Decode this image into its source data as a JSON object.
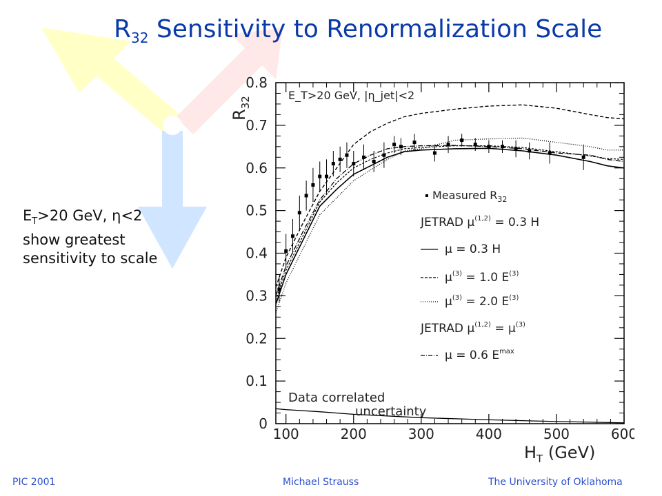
{
  "slide": {
    "title_main": "R",
    "title_sub": "32",
    "title_rest": " Sensitivity to Renormalization Scale",
    "side_text": {
      "line1_pre": "E",
      "line1_sub": "T",
      "line1_post": ">20 GeV, η<2",
      "line2": "show greatest",
      "line3": "sensitivity to scale"
    },
    "footer": {
      "left": "PIC 2001",
      "center": "Michael Strauss",
      "right": "The University of Oklahoma"
    }
  },
  "chart_data": {
    "type": "line",
    "xlabel": "H",
    "xlabel_sub": "T",
    "xlabel_unit": " (GeV)",
    "ylabel": "R",
    "ylabel_sub": "32",
    "xlim": [
      85,
      600
    ],
    "ylim": [
      0,
      0.8
    ],
    "xticks": [
      100,
      200,
      300,
      400,
      500,
      "600"
    ],
    "yticks": [
      "0",
      "0.1",
      "0.2",
      "0.3",
      "0.4",
      "0.5",
      "0.6",
      "0.7",
      "0.8"
    ],
    "cut_label": "E_T>20 GeV, |η_jet|<2",
    "annotation": {
      "line1": "Data correlated",
      "line2": "uncertainty"
    },
    "legend": {
      "measured": "Measured R",
      "measured_sub": "32",
      "jetrad1": "JETRAD μ",
      "jetrad1_sup": "(1,2)",
      "jetrad1_post": " = 0.3 H",
      "s1": "μ",
      "s1_post": " = 0.3 H",
      "s2": "μ",
      "s2_sup": "(3)",
      "s2_post": " = 1.0 E",
      "s2_post_sup": "(3)",
      "s3": "μ",
      "s3_sup": "(3)",
      "s3_post": " = 2.0 E",
      "s3_post_sup": "(3)",
      "jetrad2": "JETRAD μ",
      "jetrad2_sup": "(1,2)",
      "jetrad2_mid": " = μ",
      "jetrad2_sup2": "(3)",
      "s4": "μ",
      "s4_post": " = 0.6 E",
      "s4_post_sup": "max"
    },
    "series": [
      {
        "style": "solid",
        "x": [
          85,
          100,
          125,
          150,
          175,
          200,
          225,
          250,
          275,
          300,
          350,
          400,
          450,
          500,
          550,
          575,
          600
        ],
        "y": [
          0.28,
          0.35,
          0.43,
          0.51,
          0.55,
          0.585,
          0.605,
          0.625,
          0.638,
          0.642,
          0.645,
          0.646,
          0.64,
          0.63,
          0.615,
          0.605,
          0.6
        ]
      },
      {
        "style": "dashed",
        "x": [
          85,
          100,
          125,
          150,
          175,
          200,
          225,
          250,
          275,
          300,
          350,
          400,
          450,
          500,
          550,
          575,
          600
        ],
        "y": [
          0.32,
          0.39,
          0.47,
          0.545,
          0.6,
          0.655,
          0.685,
          0.705,
          0.72,
          0.728,
          0.738,
          0.745,
          0.748,
          0.74,
          0.725,
          0.718,
          0.715
        ]
      },
      {
        "style": "dotted",
        "x": [
          85,
          100,
          125,
          150,
          175,
          200,
          225,
          250,
          275,
          300,
          350,
          400,
          450,
          500,
          550,
          575,
          600
        ],
        "y": [
          0.26,
          0.33,
          0.41,
          0.49,
          0.53,
          0.57,
          0.595,
          0.62,
          0.64,
          0.645,
          0.665,
          0.668,
          0.67,
          0.66,
          0.65,
          0.642,
          0.642
        ]
      },
      {
        "style": "dashdot",
        "x": [
          85,
          100,
          125,
          150,
          175,
          200,
          225,
          250,
          275,
          300,
          350,
          400,
          450,
          500,
          550,
          575,
          600
        ],
        "y": [
          0.3,
          0.37,
          0.45,
          0.525,
          0.575,
          0.61,
          0.63,
          0.645,
          0.65,
          0.652,
          0.653,
          0.65,
          0.645,
          0.635,
          0.63,
          0.62,
          0.615
        ]
      },
      {
        "style": "dash2",
        "x": [
          85,
          100,
          125,
          150,
          175,
          200,
          225,
          250,
          275,
          300,
          350,
          400,
          450,
          500,
          550,
          575,
          600
        ],
        "y": [
          0.29,
          0.36,
          0.44,
          0.52,
          0.565,
          0.6,
          0.62,
          0.635,
          0.645,
          0.648,
          0.652,
          0.652,
          0.648,
          0.638,
          0.628,
          0.622,
          0.62
        ]
      },
      {
        "style": "uncertainty",
        "x": [
          85,
          100,
          150,
          200,
          300,
          400,
          500,
          600
        ],
        "y": [
          0.035,
          0.033,
          0.028,
          0.022,
          0.014,
          0.009,
          0.005,
          0.002
        ]
      }
    ],
    "points": {
      "x": [
        90,
        100,
        110,
        120,
        130,
        140,
        150,
        160,
        170,
        180,
        190,
        200,
        215,
        230,
        245,
        260,
        270,
        290,
        320,
        340,
        360,
        380,
        400,
        420,
        440,
        460,
        490,
        540
      ],
      "y": [
        0.315,
        0.405,
        0.44,
        0.495,
        0.535,
        0.56,
        0.58,
        0.58,
        0.61,
        0.62,
        0.63,
        0.61,
        0.625,
        0.615,
        0.63,
        0.655,
        0.65,
        0.66,
        0.635,
        0.655,
        0.665,
        0.655,
        0.65,
        0.65,
        0.645,
        0.64,
        0.635,
        0.625
      ],
      "err": [
        0.03,
        0.04,
        0.04,
        0.04,
        0.035,
        0.04,
        0.035,
        0.04,
        0.03,
        0.03,
        0.03,
        0.03,
        0.03,
        0.025,
        0.03,
        0.02,
        0.02,
        0.02,
        0.02,
        0.02,
        0.015,
        0.015,
        0.015,
        0.015,
        0.02,
        0.02,
        0.025,
        0.03
      ]
    }
  }
}
